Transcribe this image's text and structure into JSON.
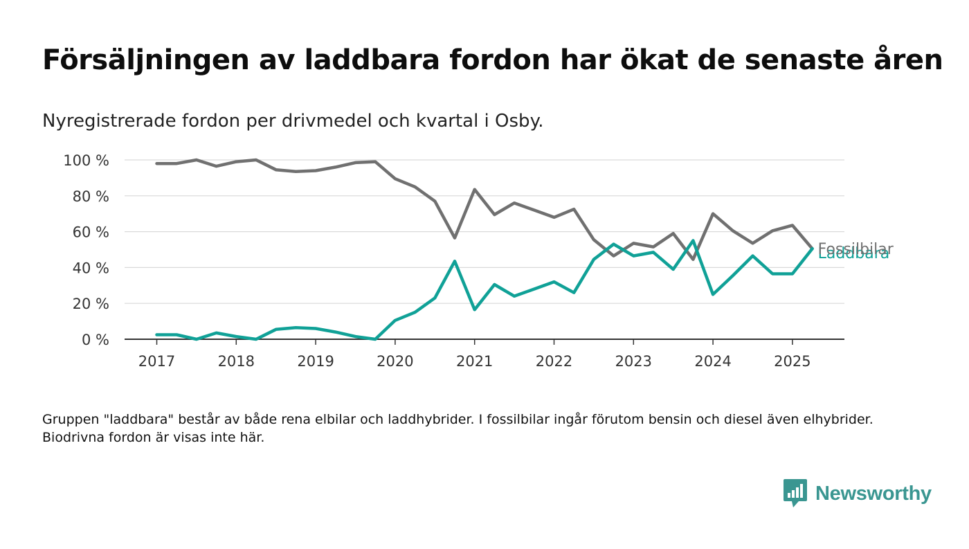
{
  "header": {
    "title": "Försäljningen av laddbara fordon har ökat de senaste åren",
    "subtitle": "Nyregistrerade fordon per drivmedel och kvartal i Osby."
  },
  "footer": {
    "note": "Gruppen \"laddbara\" består av både rena elbilar och laddhybrider. I fossilbilar ingår förutom bensin och diesel även elhybrider. Biodrivna fordon är visas inte här.",
    "brand": "Newsworthy"
  },
  "colors": {
    "fossil": "#707070",
    "laddbara": "#10a197",
    "brand": "#3a9691"
  },
  "chart_data": {
    "type": "line",
    "title": "Försäljningen av laddbara fordon har ökat de senaste åren",
    "subtitle": "Nyregistrerade fordon per drivmedel och kvartal i Osby.",
    "xlabel": "",
    "ylabel": "",
    "x_ticks": [
      "2017",
      "2018",
      "2019",
      "2020",
      "2021",
      "2022",
      "2023",
      "2024",
      "2025"
    ],
    "y_ticks": [
      "0 %",
      "20 %",
      "40 %",
      "60 %",
      "80 %",
      "100 %"
    ],
    "ylim": [
      0,
      100
    ],
    "grid": true,
    "x_start_year": 2017,
    "x": [
      "2017 Q1",
      "2017 Q2",
      "2017 Q3",
      "2017 Q4",
      "2018 Q1",
      "2018 Q2",
      "2018 Q3",
      "2018 Q4",
      "2019 Q1",
      "2019 Q2",
      "2019 Q3",
      "2019 Q4",
      "2020 Q1",
      "2020 Q2",
      "2020 Q3",
      "2020 Q4",
      "2021 Q1",
      "2021 Q2",
      "2021 Q3",
      "2021 Q4",
      "2022 Q1",
      "2022 Q2",
      "2022 Q3",
      "2022 Q4",
      "2023 Q1",
      "2023 Q2",
      "2023 Q3",
      "2023 Q4",
      "2024 Q1",
      "2024 Q2",
      "2024 Q3",
      "2024 Q4",
      "2025 Q1",
      "2025 Q2"
    ],
    "series": [
      {
        "name": "Fossilbilar",
        "color": "#707070",
        "values": [
          98,
          98,
          100,
          96.5,
          99,
          100,
          94.5,
          93.5,
          94,
          96,
          98.5,
          99,
          89.5,
          85,
          77,
          56.5,
          83.5,
          69.5,
          76,
          72,
          68,
          72.5,
          55.5,
          46.5,
          53.5,
          51.5,
          59,
          44.5,
          70,
          60.5,
          53.5,
          60.5,
          63.5,
          50.5
        ]
      },
      {
        "name": "Laddbara",
        "color": "#10a197",
        "values": [
          2.5,
          2.5,
          0,
          3.5,
          1.5,
          0,
          5.5,
          6.5,
          6,
          4,
          1.5,
          0,
          10.5,
          15,
          23,
          43.5,
          16.5,
          30.5,
          24,
          28,
          32,
          26,
          44.5,
          53,
          46.5,
          48.5,
          39,
          55,
          25,
          35.5,
          46.5,
          36.5,
          36.5,
          50.5
        ]
      }
    ],
    "legend": "inline-end-labels"
  }
}
